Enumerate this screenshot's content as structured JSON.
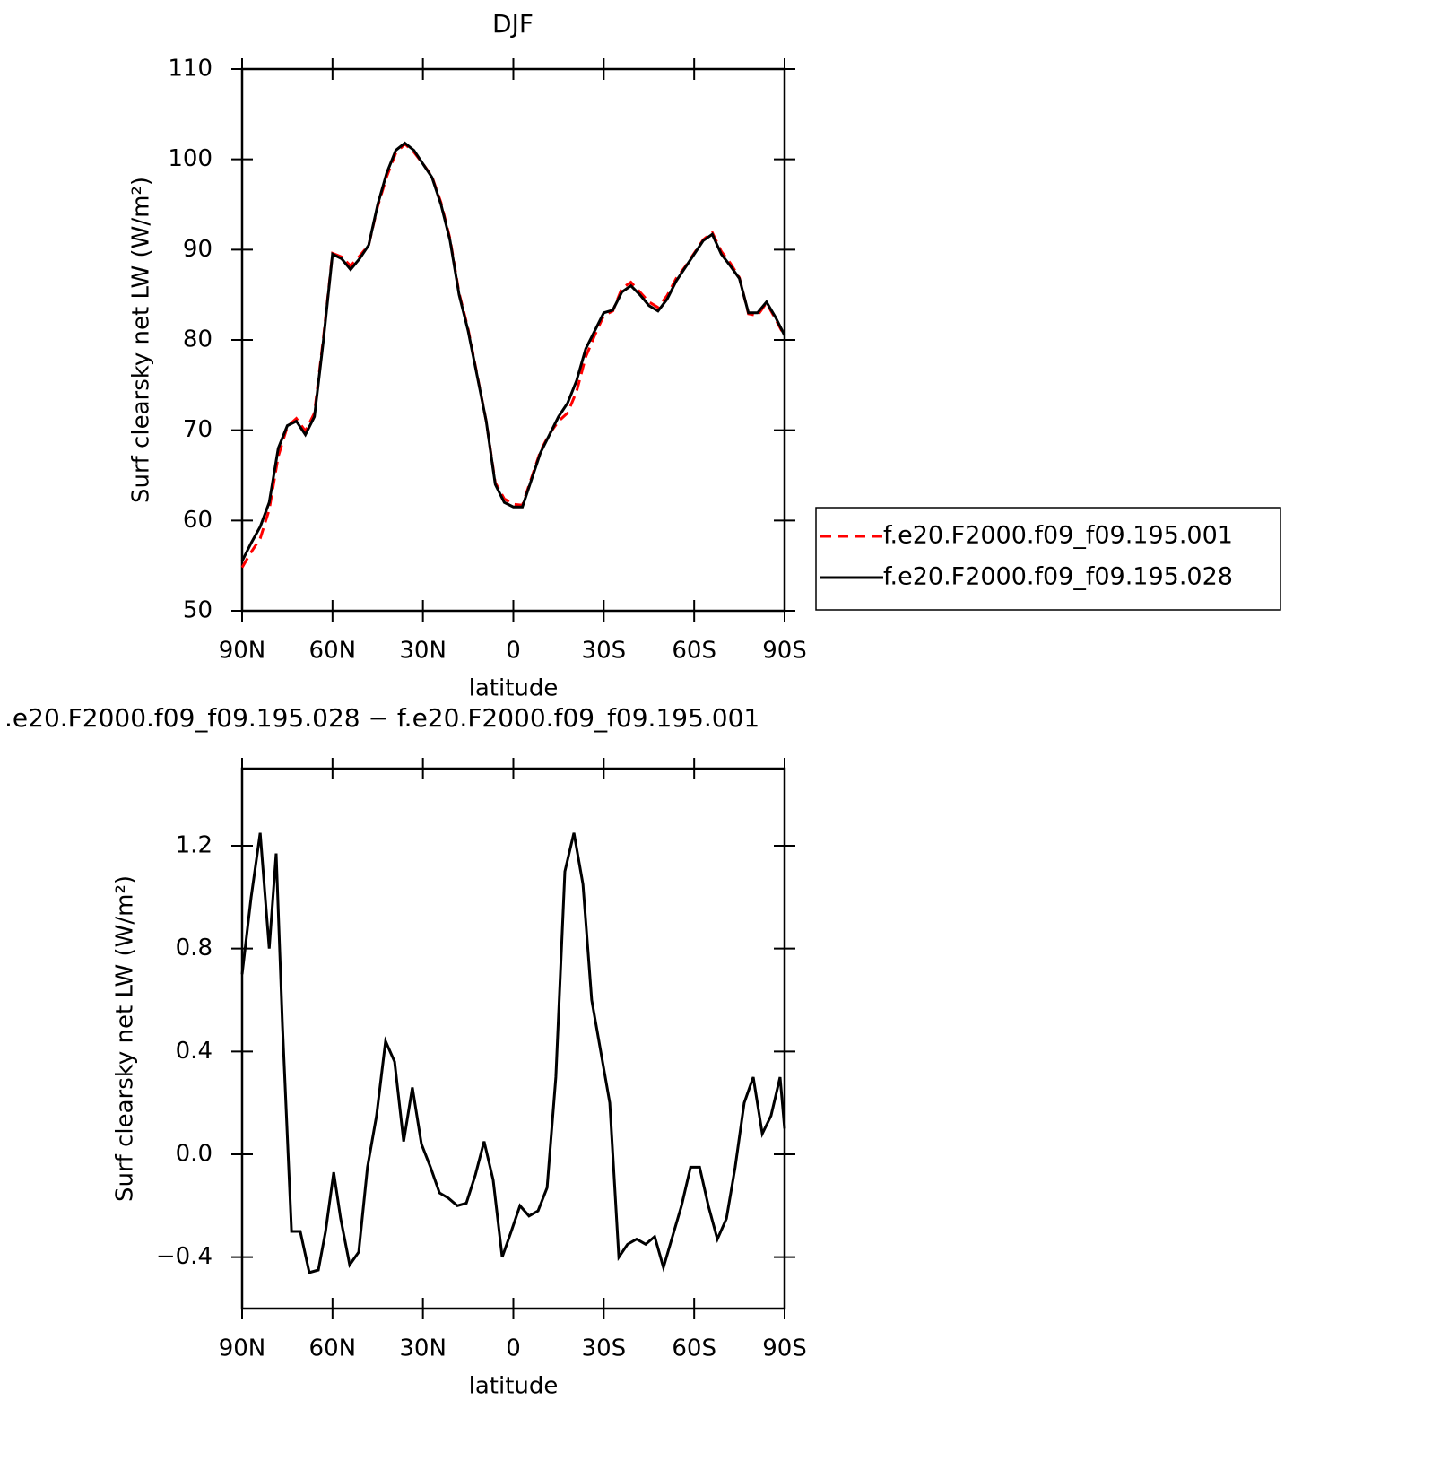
{
  "chart_data": [
    {
      "type": "line",
      "title": "DJF",
      "xlabel": "latitude",
      "ylabel": "Surf clearsky net LW (W/m²)",
      "x": [
        90,
        87,
        84,
        81,
        78,
        75,
        72,
        69,
        66,
        63,
        60,
        57,
        54,
        51,
        48,
        45,
        42,
        39,
        36,
        33,
        30,
        27,
        24,
        21,
        18,
        15,
        12,
        9,
        6,
        3,
        0,
        -3,
        -6,
        -9,
        -12,
        -15,
        -18,
        -21,
        -24,
        -27,
        -30,
        -33,
        -36,
        -39,
        -42,
        -45,
        -48,
        -51,
        -54,
        -57,
        -60,
        -63,
        -66,
        -69,
        -72,
        -75,
        -78,
        -81,
        -84,
        -87,
        -90
      ],
      "series": [
        {
          "name": "f.e20.F2000.f09_f09.195.001",
          "color": "#ff0000",
          "dash": true,
          "values": [
            54.8,
            56.5,
            58,
            61.2,
            67.1,
            70.4,
            71.3,
            69.9,
            71.9,
            80.3,
            89.6,
            89.2,
            88.2,
            89.3,
            90.5,
            94.8,
            98.1,
            100.7,
            101.7,
            100.8,
            99.5,
            98.1,
            95.2,
            91.2,
            85.2,
            81.2,
            76.1,
            71,
            64.2,
            62.4,
            61.8,
            61.7,
            64.7,
            67.7,
            69.6,
            71,
            71.9,
            74.3,
            78.1,
            80.5,
            82.7,
            83.2,
            85.7,
            86.4,
            85.3,
            84.2,
            83.6,
            84.9,
            86.8,
            88.1,
            89.6,
            91.1,
            91.9,
            89.8,
            88.5,
            86.9,
            82.9,
            82.7,
            84.1,
            82.3,
            80.4
          ]
        },
        {
          "name": "f.e20.F2000.f09_f09.195.028",
          "color": "#000000",
          "dash": false,
          "values": [
            55.5,
            57.5,
            59.3,
            62,
            68,
            70.5,
            71,
            69.5,
            71.5,
            80,
            89.5,
            89,
            87.8,
            89,
            90.5,
            95,
            98.5,
            101,
            101.8,
            101,
            99.5,
            98,
            95,
            91,
            85,
            81,
            76,
            71,
            64,
            62,
            61.5,
            61.5,
            64.5,
            67.5,
            69.5,
            71.5,
            73,
            75.5,
            79,
            81,
            83,
            83.3,
            85.3,
            86,
            85,
            83.8,
            83.2,
            84.5,
            86.5,
            88,
            89.5,
            91,
            91.7,
            89.5,
            88.2,
            86.8,
            83,
            83,
            84.2,
            82.5,
            80.5
          ]
        }
      ],
      "xlim": [
        90,
        -90
      ],
      "xticks": [
        {
          "value": 90,
          "label": "90N"
        },
        {
          "value": 60,
          "label": "60N"
        },
        {
          "value": 30,
          "label": "30N"
        },
        0,
        {
          "value": -30,
          "label": "30S"
        },
        {
          "value": -60,
          "label": "60S"
        },
        {
          "value": -90,
          "label": "90S"
        }
      ],
      "ylim": [
        50,
        110
      ],
      "yticks": [
        50,
        60,
        70,
        80,
        90,
        100,
        110
      ],
      "legend": "right"
    },
    {
      "type": "line",
      "title": ".e20.F2000.f09_f09.195.028 − f.e20.F2000.f09_f09.195.001",
      "xlabel": "latitude",
      "ylabel": "Surf clearsky net LW (W/m²)",
      "x": [
        90,
        87,
        84,
        81,
        78.7,
        76.6,
        73.6,
        70.7,
        67.7,
        64.7,
        62.3,
        59.6,
        57.3,
        54.3,
        51.3,
        48.4,
        45.4,
        42.4,
        39.4,
        36.4,
        33.5,
        30.5,
        27.5,
        24.5,
        21.6,
        18.6,
        15.6,
        12.6,
        9.7,
        6.7,
        3.7,
        0.7,
        -2.2,
        -5.2,
        -8.2,
        -11.2,
        -14.1,
        -17.1,
        -20.1,
        -23.1,
        -26,
        -29,
        -32,
        -35,
        -37.9,
        -40.9,
        -43.9,
        -46.9,
        -49.8,
        -52.8,
        -55.8,
        -58.8,
        -61.8,
        -64.7,
        -67.7,
        -70.7,
        -73.6,
        -76.6,
        -79.6,
        -82.6,
        -85.5,
        -88.5,
        -90
      ],
      "values": [
        0.7,
        1.0,
        1.25,
        0.8,
        1.17,
        0.5,
        -0.3,
        -0.3,
        -0.46,
        -0.45,
        -0.3,
        -0.07,
        -0.25,
        -0.43,
        -0.38,
        -0.05,
        0.15,
        0.44,
        0.36,
        0.05,
        0.26,
        0.04,
        -0.05,
        -0.15,
        -0.17,
        -0.2,
        -0.19,
        -0.08,
        0.05,
        -0.1,
        -0.4,
        -0.3,
        -0.2,
        -0.24,
        -0.22,
        -0.13,
        0.3,
        1.1,
        1.25,
        1.05,
        0.6,
        0.4,
        0.2,
        -0.4,
        -0.35,
        -0.33,
        -0.35,
        -0.32,
        -0.44,
        -0.32,
        -0.2,
        -0.05,
        -0.05,
        -0.2,
        -0.33,
        -0.25,
        -0.05,
        0.2,
        0.3,
        0.08,
        0.15,
        0.3,
        0.1
      ],
      "color": "#000000",
      "xlim": [
        90,
        -90
      ],
      "xticks": [
        {
          "value": 90,
          "label": "90N"
        },
        {
          "value": 60,
          "label": "60N"
        },
        {
          "value": 30,
          "label": "30N"
        },
        0,
        {
          "value": -30,
          "label": "30S"
        },
        {
          "value": -60,
          "label": "60S"
        },
        {
          "value": -90,
          "label": "90S"
        }
      ],
      "ylim": [
        -0.6,
        1.5
      ],
      "yticks": [
        {
          "value": -0.4,
          "label": "−0.4"
        },
        {
          "value": 0,
          "label": "0.0"
        },
        0.4,
        0.8,
        1.2
      ]
    }
  ]
}
